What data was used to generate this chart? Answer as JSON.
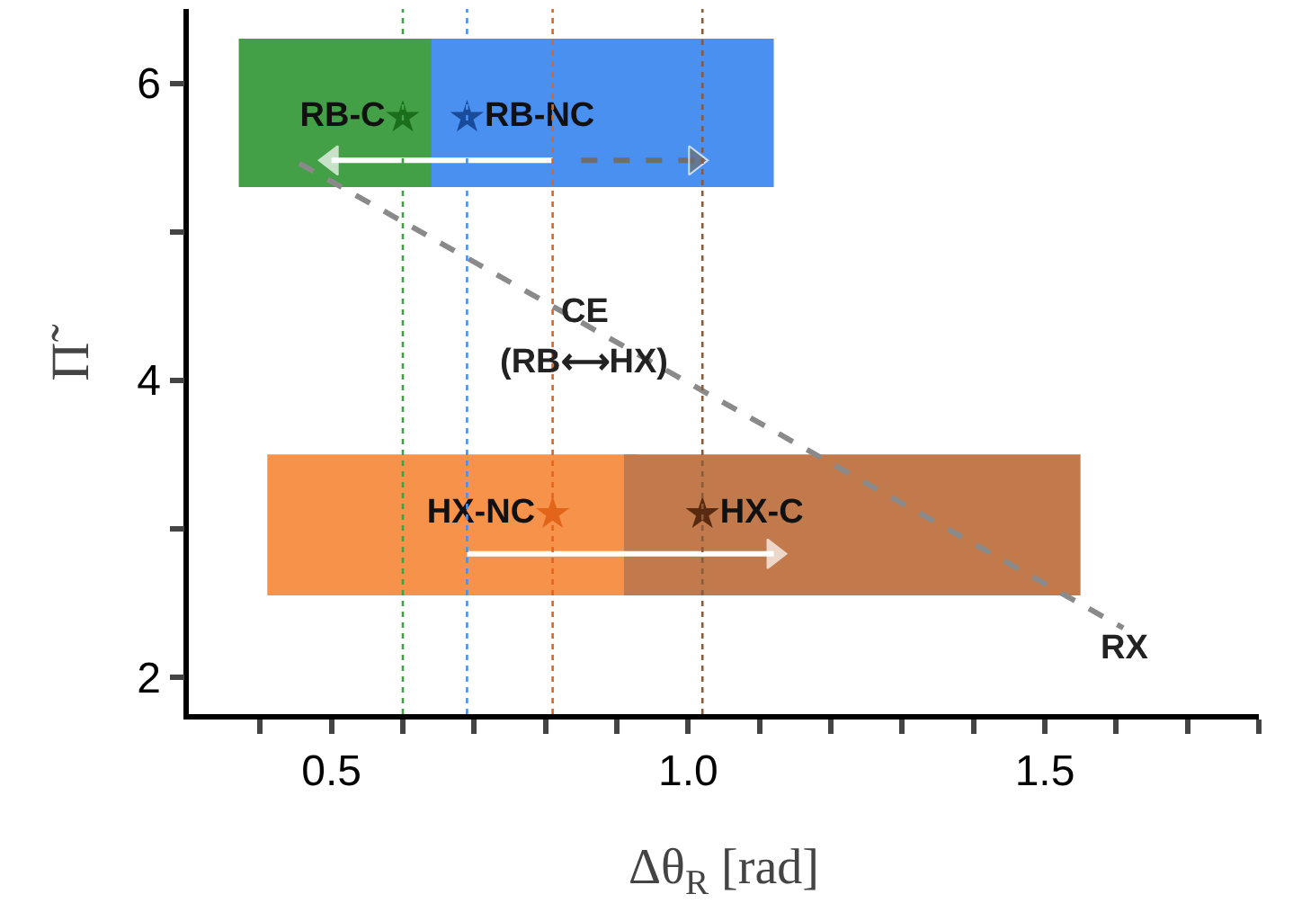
{
  "chart_data": {
    "type": "scatter",
    "xlabel": "Δθ$_{R}$ [rad]",
    "ylabel": "Π̃",
    "xlim": [
      0.3,
      1.8
    ],
    "ylim": [
      1.75,
      6.5
    ],
    "xticks": [
      {
        "value": 0.4,
        "label": null
      },
      {
        "value": 0.5,
        "label": "0.5"
      },
      {
        "value": 0.6,
        "label": null
      },
      {
        "value": 0.7,
        "label": null
      },
      {
        "value": 0.8,
        "label": null
      },
      {
        "value": 0.9,
        "label": null
      },
      {
        "value": 1.0,
        "label": "1.0"
      },
      {
        "value": 1.1,
        "label": null
      },
      {
        "value": 1.2,
        "label": null
      },
      {
        "value": 1.3,
        "label": null
      },
      {
        "value": 1.4,
        "label": null
      },
      {
        "value": 1.5,
        "label": "1.5"
      },
      {
        "value": 1.6,
        "label": null
      },
      {
        "value": 1.7,
        "label": null
      },
      {
        "value": 1.8,
        "label": null
      }
    ],
    "yticks": [
      2,
      {
        "value": 3,
        "label": null
      },
      4,
      {
        "value": 5,
        "label": null
      },
      6
    ],
    "series": [
      {
        "type": "line",
        "color": "#43a047",
        "x": [
          0.37,
          0.66
        ],
        "values": [
          null,
          null
        ],
        "lower": [
          5.3,
          5.3
        ],
        "upper": [
          6.3,
          6.3
        ]
      },
      {
        "type": "line",
        "color": "#4a90f0",
        "x": [
          0.64,
          1.12
        ],
        "values": [
          null,
          null
        ],
        "lower": [
          5.3,
          5.3
        ],
        "upper": [
          6.3,
          6.3
        ]
      },
      {
        "type": "line",
        "color": "#f7924a",
        "x": [
          0.41,
          0.93
        ],
        "values": [
          null,
          null
        ],
        "lower": [
          2.55,
          2.55
        ],
        "upper": [
          3.5,
          3.5
        ]
      },
      {
        "type": "line",
        "color": "#c27a4c",
        "x": [
          0.91,
          1.55
        ],
        "values": [
          null,
          null
        ],
        "lower": [
          2.55,
          2.55
        ],
        "upper": [
          3.5,
          3.5
        ]
      },
      {
        "type": "line",
        "line_style": "dashed",
        "color": "#8a8a8a",
        "x": [
          0.455,
          1.61
        ],
        "values": [
          5.46,
          2.33
        ]
      },
      {
        "type": "line",
        "line_style": "solid",
        "marker": "triangle",
        "color": "#ffffff",
        "x": [
          0.81,
          0.5
        ],
        "values": [
          5.48,
          5.48
        ]
      },
      {
        "type": "line",
        "line_style": "dashed",
        "marker": "triangle",
        "color": "#6e6e6e",
        "x": [
          0.85,
          1.01
        ],
        "values": [
          5.48,
          5.48
        ]
      },
      {
        "type": "line",
        "line_style": "solid",
        "marker": "triangle",
        "color": "#ffffff",
        "x": [
          0.69,
          1.12
        ],
        "values": [
          2.83,
          2.83
        ]
      },
      {
        "name": "RB-C",
        "marker": "star",
        "color": "#1b6e1b",
        "x": [
          0.6
        ],
        "values": [
          5.77
        ]
      },
      {
        "name": "RB-NC",
        "marker": "star",
        "color": "#1a4a9a",
        "x": [
          0.69
        ],
        "values": [
          5.77
        ]
      },
      {
        "name": "HX-NC",
        "marker": "star",
        "color": "#e2651a",
        "x": [
          0.81
        ],
        "values": [
          3.1
        ]
      },
      {
        "name": "HX-C",
        "marker": "star",
        "color": "#5a2a10",
        "x": [
          1.02
        ],
        "values": [
          3.1
        ]
      }
    ],
    "ref_lines": [
      {
        "axis": "x",
        "value": 0.6,
        "color": "#43a047",
        "line_style": "dotted"
      },
      {
        "axis": "x",
        "value": 0.69,
        "color": "#4a90f0",
        "line_style": "dotted"
      },
      {
        "axis": "x",
        "value": 0.81,
        "color": "#e2651a",
        "line_style": "dotted"
      },
      {
        "axis": "x",
        "value": 1.02,
        "color": "#8a5a3a",
        "line_style": "dotted"
      }
    ],
    "annotations": [
      "CE",
      "(RB⟷HX)",
      "RX"
    ]
  }
}
